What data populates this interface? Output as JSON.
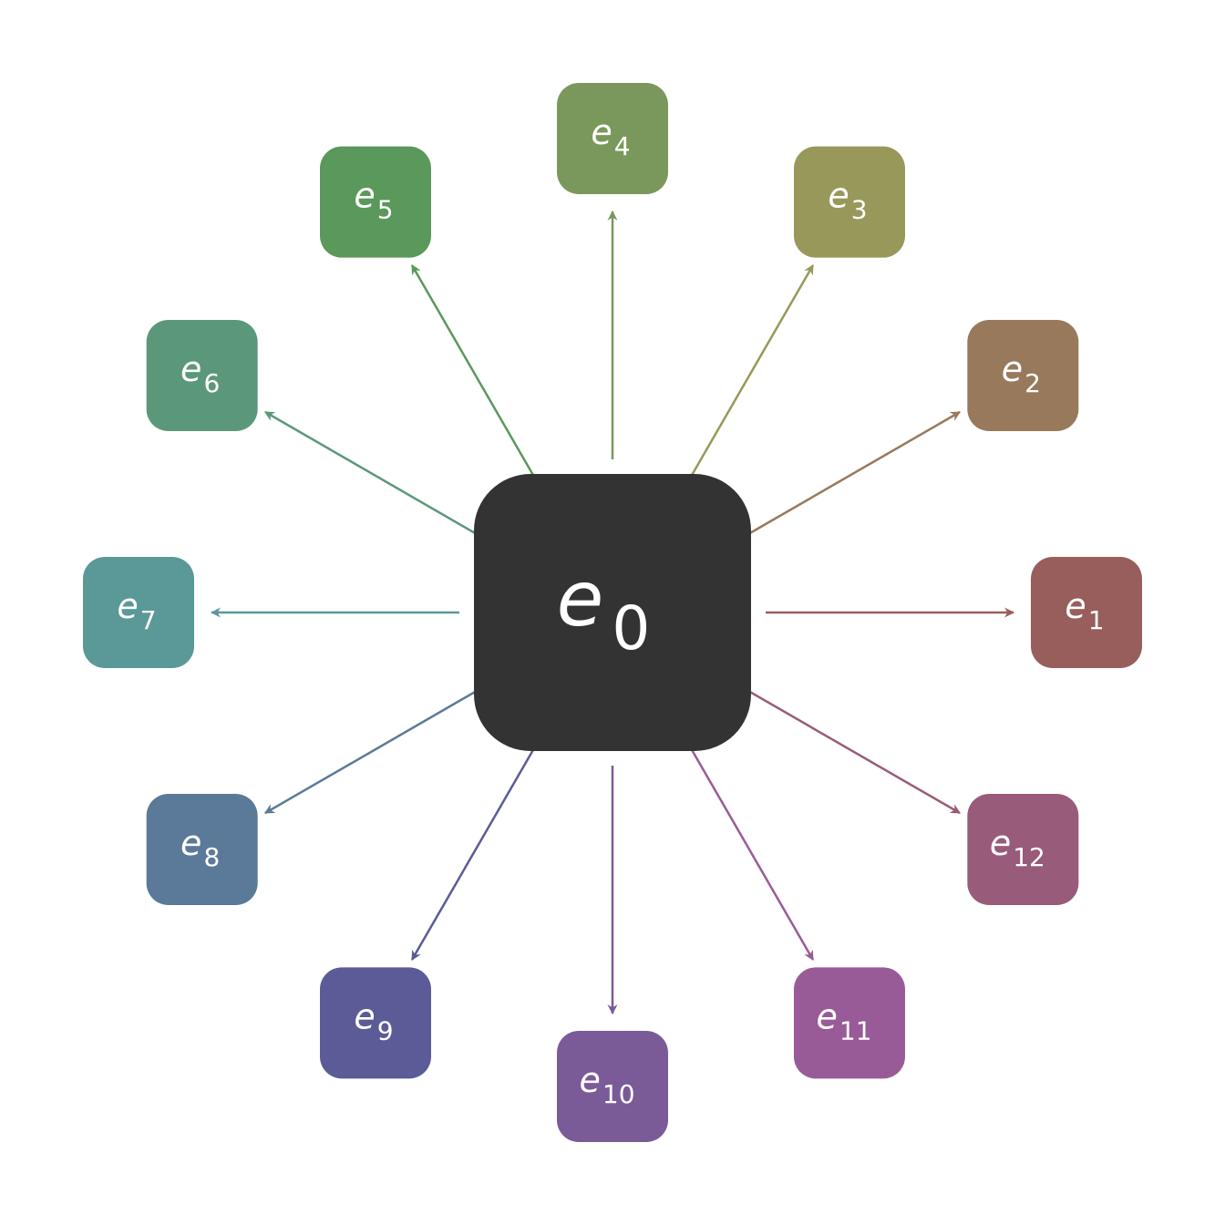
{
  "center": {
    "base": "e",
    "sub": "0",
    "color": "#333333"
  },
  "nodes": [
    {
      "base": "e",
      "sub": "1",
      "color": "#985e5b"
    },
    {
      "base": "e",
      "sub": "2",
      "color": "#98795b"
    },
    {
      "base": "e",
      "sub": "3",
      "color": "#98985b"
    },
    {
      "base": "e",
      "sub": "4",
      "color": "#7a985b"
    },
    {
      "base": "e",
      "sub": "5",
      "color": "#5b985b"
    },
    {
      "base": "e",
      "sub": "6",
      "color": "#5b9879"
    },
    {
      "base": "e",
      "sub": "7",
      "color": "#5b9898"
    },
    {
      "base": "e",
      "sub": "8",
      "color": "#5b7998"
    },
    {
      "base": "e",
      "sub": "9",
      "color": "#5b5b98"
    },
    {
      "base": "e",
      "sub": "10",
      "color": "#7a5b98"
    },
    {
      "base": "e",
      "sub": "11",
      "color": "#985b98"
    },
    {
      "base": "e",
      "sub": "12",
      "color": "#985b79"
    }
  ]
}
